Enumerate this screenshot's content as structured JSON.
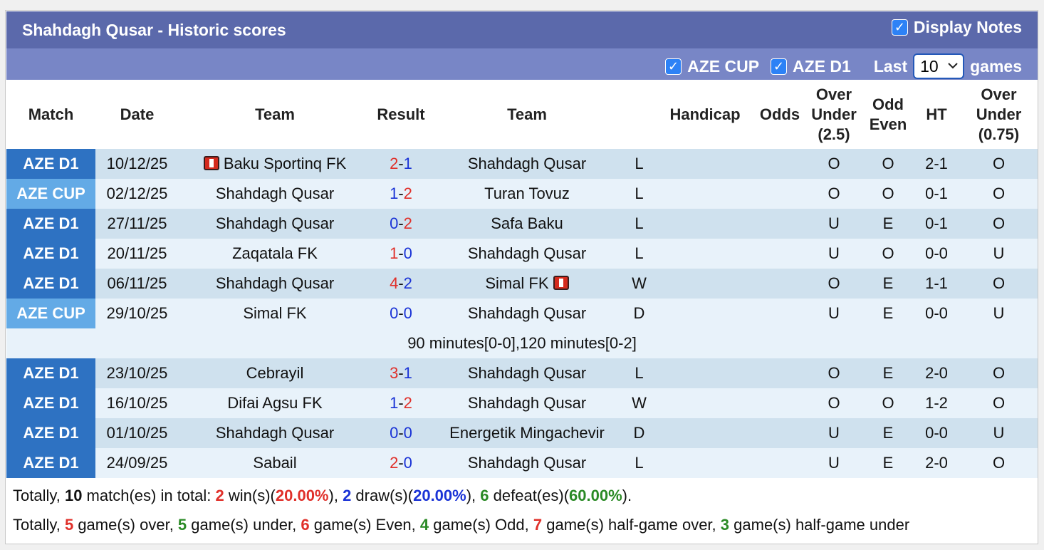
{
  "header": {
    "title": "Shahdagh Qusar - Historic scores",
    "display_notes_label": "Display Notes",
    "display_notes_checked": true
  },
  "filters": {
    "cup_label": "AZE CUP",
    "d1_label": "AZE D1",
    "last_label": "Last",
    "games_label": "games",
    "last_value": "10"
  },
  "columns": {
    "match": "Match",
    "date": "Date",
    "team": "Team",
    "result": "Result",
    "team2": "Team",
    "handicap": "Handicap",
    "odds": "Odds",
    "ou25_line1": "Over",
    "ou25_line2": "Under",
    "ou25_line3": "(2.5)",
    "oe_line1": "Odd",
    "oe_line2": "Even",
    "ht": "HT",
    "ou075_line1": "Over",
    "ou075_line2": "Under",
    "ou075_line3": "(0.75)"
  },
  "rows": [
    {
      "comp": "AZE D1",
      "date": "10/12/25",
      "home": "Baku Sportinq FK",
      "home_goals": "2",
      "away_goals": "1",
      "away": "Shahdagh Qusar",
      "wl": "L",
      "ou": "O",
      "oe": "O",
      "ht": "2-1",
      "ou2": "O"
    },
    {
      "comp": "AZE CUP",
      "date": "02/12/25",
      "home": "Shahdagh Qusar",
      "home_goals": "1",
      "away_goals": "2",
      "away": "Turan Tovuz",
      "wl": "L",
      "ou": "O",
      "oe": "O",
      "ht": "0-1",
      "ou2": "O"
    },
    {
      "comp": "AZE D1",
      "date": "27/11/25",
      "home": "Shahdagh Qusar",
      "home_goals": "0",
      "away_goals": "2",
      "away": "Safa Baku",
      "wl": "L",
      "ou": "U",
      "oe": "E",
      "ht": "0-1",
      "ou2": "O"
    },
    {
      "comp": "AZE D1",
      "date": "20/11/25",
      "home": "Zaqatala FK",
      "home_goals": "1",
      "away_goals": "0",
      "away": "Shahdagh Qusar",
      "wl": "L",
      "ou": "U",
      "oe": "O",
      "ht": "0-0",
      "ou2": "U"
    },
    {
      "comp": "AZE D1",
      "date": "06/11/25",
      "home": "Shahdagh Qusar",
      "home_goals": "4",
      "away_goals": "2",
      "away": "Simal FK",
      "wl": "W",
      "ou": "O",
      "oe": "E",
      "ht": "1-1",
      "ou2": "O"
    },
    {
      "comp": "AZE CUP",
      "date": "29/10/25",
      "home": "Simal FK",
      "home_goals": "0",
      "away_goals": "0",
      "away": "Shahdagh Qusar",
      "wl": "D",
      "ou": "U",
      "oe": "E",
      "ht": "0-0",
      "ou2": "U"
    },
    {
      "comp": "AZE D1",
      "date": "23/10/25",
      "home": "Cebrayil",
      "home_goals": "3",
      "away_goals": "1",
      "away": "Shahdagh Qusar",
      "wl": "L",
      "ou": "O",
      "oe": "E",
      "ht": "2-0",
      "ou2": "O"
    },
    {
      "comp": "AZE D1",
      "date": "16/10/25",
      "home": "Difai Agsu FK",
      "home_goals": "1",
      "away_goals": "2",
      "away": "Shahdagh Qusar",
      "wl": "W",
      "ou": "O",
      "oe": "O",
      "ht": "1-2",
      "ou2": "O"
    },
    {
      "comp": "AZE D1",
      "date": "01/10/25",
      "home": "Shahdagh Qusar",
      "home_goals": "0",
      "away_goals": "0",
      "away": "Energetik Mingachevir",
      "wl": "D",
      "ou": "U",
      "oe": "E",
      "ht": "0-0",
      "ou2": "U"
    },
    {
      "comp": "AZE D1",
      "date": "24/09/25",
      "home": "Sabail",
      "home_goals": "2",
      "away_goals": "0",
      "away": "Shahdagh Qusar",
      "wl": "L",
      "ou": "U",
      "oe": "E",
      "ht": "2-0",
      "ou2": "O"
    }
  ],
  "note_row": "90 minutes[0-0],120 minutes[0-2]",
  "summary1": {
    "p1": "Totally, ",
    "total": "10",
    "p2": " match(es) in total: ",
    "wins": "2",
    "p3": " win(s)(",
    "win_pct": "20.00%",
    "p4": "), ",
    "draws": "2",
    "p5": " draw(s)(",
    "draw_pct": "20.00%",
    "p6": "), ",
    "defeats": "6",
    "p7": " defeat(es)(",
    "defeat_pct": "60.00%",
    "p8": ")."
  },
  "summary2": {
    "p1": "Totally, ",
    "over": "5",
    "p2": " game(s) over, ",
    "under": "5",
    "p3": " game(s) under, ",
    "even": "6",
    "p4": " game(s) Even, ",
    "odd": "4",
    "p5": " game(s) Odd, ",
    "hg_over": "7",
    "p6": " game(s) half-game over, ",
    "hg_under": "3",
    "p7": " game(s) half-game under"
  }
}
